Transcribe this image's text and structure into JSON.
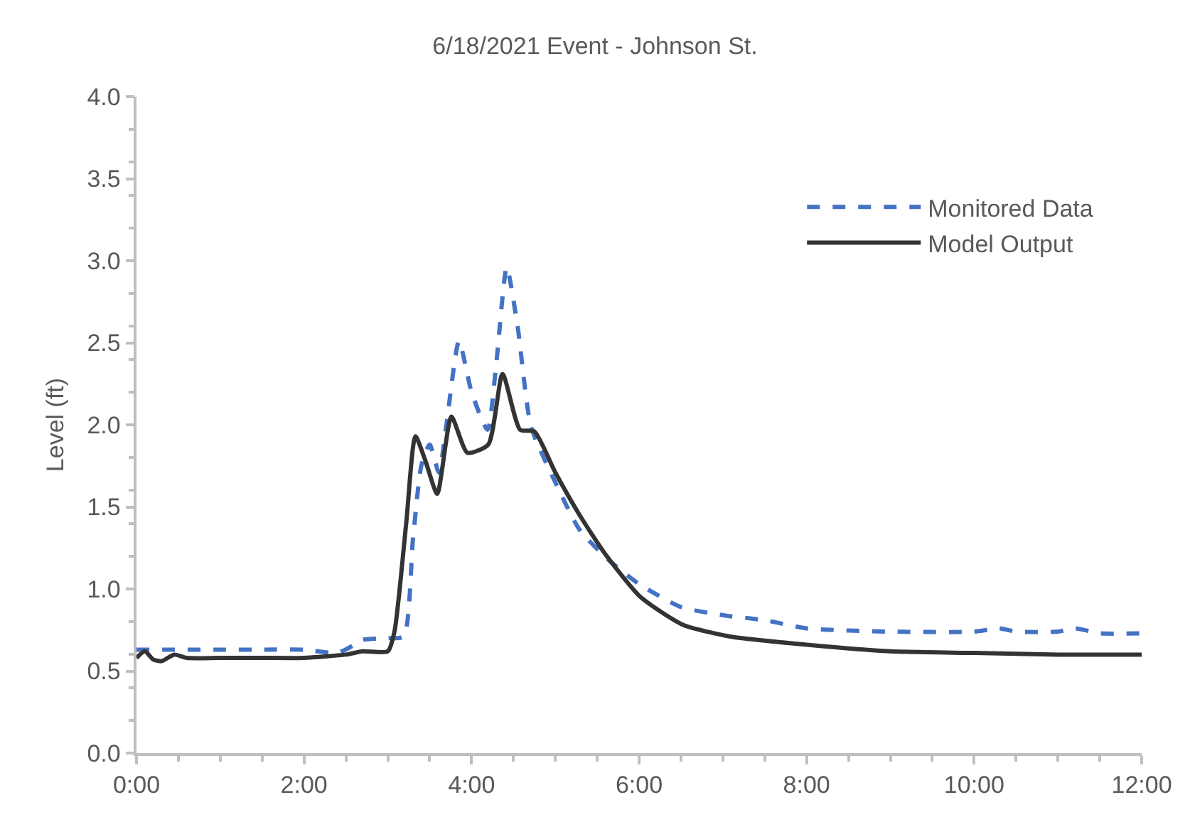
{
  "chart_data": {
    "type": "line",
    "title": "6/18/2021 Event - Johnson St.",
    "ylabel": "Level (ft)",
    "xlim": [
      0,
      12
    ],
    "ylim": [
      0,
      4
    ],
    "xticks": [
      {
        "value": 0,
        "label": "0:00"
      },
      {
        "value": 2,
        "label": "2:00"
      },
      {
        "value": 4,
        "label": "4:00"
      },
      {
        "value": 6,
        "label": "6:00"
      },
      {
        "value": 8,
        "label": "8:00"
      },
      {
        "value": 10,
        "label": "10:00"
      },
      {
        "value": 12,
        "label": "12:00"
      }
    ],
    "yticks": [
      {
        "value": 0,
        "label": "0.0"
      },
      {
        "value": 0.5,
        "label": "0.5"
      },
      {
        "value": 1,
        "label": "1.0"
      },
      {
        "value": 1.5,
        "label": "1.5"
      },
      {
        "value": 2,
        "label": "2.0"
      },
      {
        "value": 2.5,
        "label": "2.5"
      },
      {
        "value": 3,
        "label": "3.0"
      },
      {
        "value": 3.5,
        "label": "3.5"
      },
      {
        "value": 4,
        "label": "4.0"
      }
    ],
    "grid": false,
    "legend": "top right",
    "marker": "none",
    "series": [
      {
        "name": "Monitored Data",
        "color": "#4472c4",
        "line_style": "dashed",
        "x": [
          0,
          0.5,
          1,
          1.5,
          2,
          2.4,
          2.6,
          2.7,
          3.0,
          3.19,
          3.3,
          3.4,
          3.5,
          3.61,
          3.7,
          3.85,
          4.0,
          4.19,
          4.3,
          4.42,
          4.55,
          4.71,
          5.0,
          5.29,
          5.63,
          6.0,
          6.5,
          7.0,
          7.5,
          8.0,
          9.0,
          10.0,
          10.3,
          10.5,
          11.0,
          11.2,
          11.5,
          12.0
        ],
        "values": [
          0.63,
          0.63,
          0.63,
          0.63,
          0.63,
          0.61,
          0.66,
          0.69,
          0.7,
          0.71,
          1.3,
          1.75,
          1.88,
          1.71,
          2.0,
          2.51,
          2.2,
          1.97,
          2.4,
          2.96,
          2.6,
          1.99,
          1.65,
          1.36,
          1.18,
          1.03,
          0.89,
          0.84,
          0.81,
          0.76,
          0.74,
          0.74,
          0.76,
          0.74,
          0.74,
          0.76,
          0.73,
          0.73
        ]
      },
      {
        "name": "Model Output",
        "color": "#333333",
        "line_style": "solid",
        "x": [
          0,
          0.1,
          0.2,
          0.3,
          0.45,
          0.6,
          1.0,
          1.5,
          2.0,
          2.5,
          2.7,
          3.0,
          3.08,
          3.22,
          3.33,
          3.45,
          3.59,
          3.76,
          3.95,
          4.2,
          4.37,
          4.58,
          4.75,
          5.0,
          5.29,
          5.6,
          6.02,
          6.53,
          7.09,
          8.0,
          9.0,
          10.0,
          11.0,
          12.0
        ],
        "values": [
          0.58,
          0.62,
          0.57,
          0.56,
          0.6,
          0.58,
          0.58,
          0.58,
          0.58,
          0.6,
          0.62,
          0.62,
          0.74,
          1.4,
          1.93,
          1.78,
          1.58,
          2.05,
          1.83,
          1.88,
          2.31,
          1.97,
          1.96,
          1.71,
          1.45,
          1.21,
          0.95,
          0.78,
          0.71,
          0.66,
          0.62,
          0.61,
          0.6,
          0.6
        ]
      }
    ]
  }
}
